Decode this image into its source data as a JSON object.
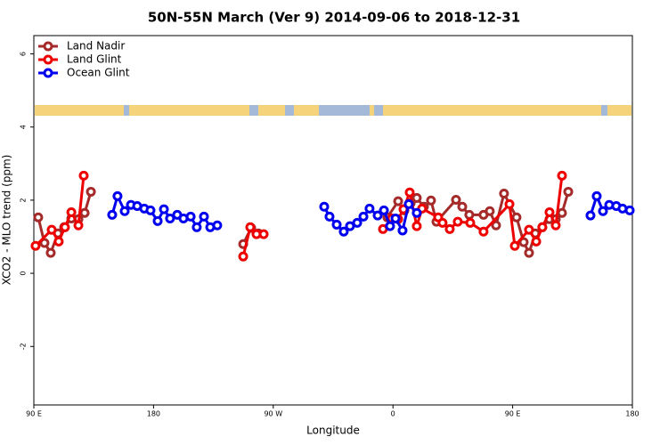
{
  "chart_data": {
    "type": "line",
    "title": "50N-55N March (Ver 9)   2014-09-06 to 2018-12-31",
    "x_label": "Longitude",
    "y_label": "XCO2 - MLO trend (ppm)",
    "xlim": [
      90,
      540
    ],
    "xticks": [
      {
        "value": 90,
        "label": "90 E"
      },
      {
        "value": 180,
        "label": "180"
      },
      {
        "value": 270,
        "label": "90 W"
      },
      {
        "value": 360,
        "label": "0"
      },
      {
        "value": 450,
        "label": "90 E"
      },
      {
        "value": 540,
        "label": "180"
      }
    ],
    "ylim": [
      -3.6,
      6.5
    ],
    "yticks": [
      -2,
      0,
      2,
      4,
      6
    ],
    "legend": "top-left",
    "series": [
      {
        "name": "Land Nadir",
        "color": "#a52a2a",
        "x": [
          93.3,
          98.0,
          102.7,
          108.1,
          112.8,
          118.2,
          123.5,
          128.2,
          132.9,
          null,
          247.4,
          253.4,
          258.8,
          null,
          355.8,
          363.9,
          368.6,
          373.3,
          377.9,
          383.3,
          388.6,
          392.7,
          407.4,
          412.1,
          417.4,
          428.1,
          432.8,
          437.5,
          443.5,
          452.9,
          458.3,
          462.3,
          467.0,
          472.3,
          477.7,
          482.4,
          487.1,
          491.8
        ],
        "values": [
          1.53,
          0.83,
          0.56,
          1.09,
          1.26,
          1.5,
          1.48,
          1.65,
          2.23,
          null,
          0.8,
          1.24,
          1.09,
          null,
          1.53,
          1.97,
          1.72,
          1.92,
          2.06,
          1.82,
          1.99,
          1.41,
          2.01,
          1.82,
          1.6,
          1.6,
          1.7,
          1.31,
          2.18,
          1.53,
          0.85,
          0.56,
          1.09,
          1.26,
          1.48,
          1.48,
          1.65,
          2.23
        ]
      },
      {
        "name": "Land Glint",
        "color": "#ee0000",
        "x": [
          91.3,
          103.4,
          108.7,
          113.4,
          118.2,
          123.5,
          127.5,
          null,
          247.4,
          252.7,
          257.4,
          262.8,
          null,
          352.5,
          359.2,
          363.9,
          367.9,
          372.6,
          377.9,
          381.9,
          394.0,
          397.3,
          402.7,
          408.7,
          418.1,
          428.1,
          447.6,
          451.6,
          462.3,
          467.7,
          472.3,
          477.7,
          482.4,
          487.1
        ],
        "values": [
          0.75,
          1.19,
          0.87,
          1.26,
          1.67,
          1.31,
          2.67,
          null,
          0.46,
          1.26,
          1.07,
          1.07,
          null,
          1.21,
          1.5,
          1.48,
          1.75,
          2.21,
          1.29,
          1.77,
          1.53,
          1.38,
          1.21,
          1.41,
          1.38,
          1.14,
          1.89,
          0.75,
          1.19,
          0.87,
          1.26,
          1.67,
          1.31,
          2.67
        ]
      },
      {
        "name": "Ocean Glint",
        "color": "#0000ee",
        "x": [
          148.9,
          152.9,
          158.3,
          163.0,
          167.7,
          173.0,
          177.7,
          183.1,
          187.8,
          192.4,
          197.8,
          202.5,
          207.9,
          212.5,
          217.9,
          222.6,
          227.9,
          null,
          308.3,
          312.3,
          317.7,
          323.0,
          327.7,
          333.1,
          337.8,
          342.4,
          348.5,
          353.2,
          357.8,
          361.9,
          367.2,
          371.9,
          377.9,
          null,
          508.5,
          513.2,
          517.9,
          522.6,
          527.9,
          532.6,
          538.0
        ],
        "values": [
          1.6,
          2.11,
          1.7,
          1.87,
          1.84,
          1.77,
          1.72,
          1.43,
          1.75,
          1.5,
          1.6,
          1.5,
          1.55,
          1.26,
          1.55,
          1.26,
          1.31,
          null,
          1.82,
          1.55,
          1.33,
          1.14,
          1.29,
          1.38,
          1.55,
          1.77,
          1.58,
          1.72,
          1.29,
          1.5,
          1.17,
          1.89,
          1.65,
          null,
          1.58,
          2.11,
          1.7,
          1.87,
          1.84,
          1.77,
          1.72
        ]
      }
    ]
  }
}
